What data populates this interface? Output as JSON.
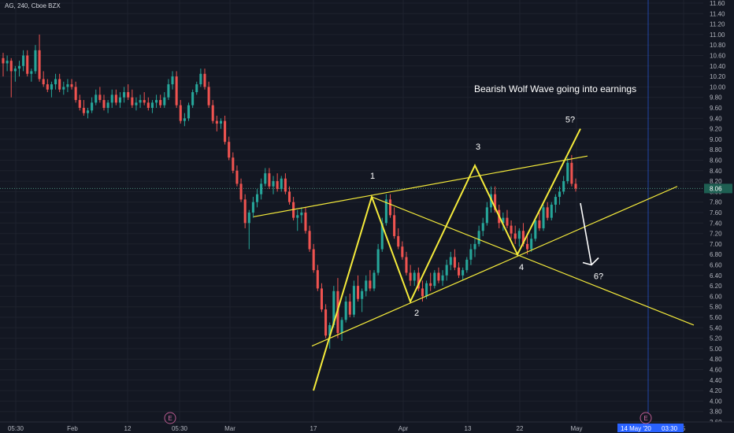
{
  "chart_data": {
    "type": "candlestick",
    "symbol_header": "AG, 240, Cboe BZX",
    "annotation": "Bearish Wolf Wave going into earnings",
    "last_price": "8.06",
    "y_ticks": [
      "3.60",
      "3.80",
      "4.00",
      "4.20",
      "4.40",
      "4.60",
      "4.80",
      "5.00",
      "5.20",
      "5.40",
      "5.60",
      "5.80",
      "6.00",
      "6.20",
      "6.40",
      "6.60",
      "6.80",
      "7.00",
      "7.20",
      "7.40",
      "7.60",
      "7.80",
      "8.00",
      "8.20",
      "8.40",
      "8.60",
      "8.80",
      "9.00",
      "9.20",
      "9.40",
      "9.60",
      "9.80",
      "10.00",
      "10.20",
      "10.40",
      "10.60",
      "10.80",
      "11.00",
      "11.20",
      "11.40",
      "11.60"
    ],
    "ylim": [
      3.6,
      11.6
    ],
    "x_ticks": [
      "05:30",
      "Feb",
      "12",
      "05:30",
      "Mar",
      "17",
      "Apr",
      "13",
      "22",
      "May",
      "5"
    ],
    "date_badge": "14 May '20",
    "time_badge": "03:30",
    "earnings_marker": "E",
    "wave_labels": [
      {
        "label": "1",
        "price": 7.9
      },
      {
        "label": "2",
        "price": 5.9
      },
      {
        "label": "3",
        "price": 8.5
      },
      {
        "label": "4",
        "price": 6.8
      },
      {
        "label": "5?",
        "price": 9.2
      },
      {
        "label": "6?",
        "price": 6.55
      }
    ],
    "candles": [
      [
        10.55,
        10.65,
        10.2,
        10.45
      ],
      [
        10.45,
        10.6,
        10.3,
        10.5
      ],
      [
        10.5,
        10.55,
        9.8,
        10.3
      ],
      [
        10.3,
        10.4,
        10.1,
        10.35
      ],
      [
        10.35,
        10.5,
        10.2,
        10.4
      ],
      [
        10.4,
        10.7,
        10.3,
        10.6
      ],
      [
        10.6,
        10.7,
        10.2,
        10.25
      ],
      [
        10.25,
        10.35,
        10.1,
        10.3
      ],
      [
        10.3,
        10.8,
        10.25,
        10.7
      ],
      [
        10.7,
        11.0,
        10.1,
        10.15
      ],
      [
        10.15,
        10.3,
        10.0,
        10.05
      ],
      [
        10.05,
        10.15,
        9.9,
        9.95
      ],
      [
        9.95,
        10.1,
        9.8,
        10.05
      ],
      [
        10.05,
        10.25,
        9.95,
        10.15
      ],
      [
        10.15,
        10.25,
        9.9,
        9.95
      ],
      [
        9.95,
        10.1,
        9.85,
        10.0
      ],
      [
        10.0,
        10.15,
        9.9,
        10.05
      ],
      [
        10.05,
        10.15,
        9.95,
        10.0
      ],
      [
        10.0,
        10.1,
        9.7,
        9.75
      ],
      [
        9.75,
        9.85,
        9.55,
        9.6
      ],
      [
        9.6,
        9.75,
        9.45,
        9.5
      ],
      [
        9.5,
        9.6,
        9.4,
        9.55
      ],
      [
        9.55,
        9.8,
        9.5,
        9.7
      ],
      [
        9.7,
        9.95,
        9.65,
        9.85
      ],
      [
        9.85,
        10.0,
        9.7,
        9.75
      ],
      [
        9.75,
        9.85,
        9.55,
        9.6
      ],
      [
        9.6,
        9.75,
        9.5,
        9.7
      ],
      [
        9.7,
        9.95,
        9.6,
        9.85
      ],
      [
        9.85,
        9.95,
        9.65,
        9.7
      ],
      [
        9.7,
        9.9,
        9.6,
        9.8
      ],
      [
        9.8,
        10.0,
        9.7,
        9.9
      ],
      [
        9.9,
        10.05,
        9.75,
        9.8
      ],
      [
        9.8,
        9.95,
        9.6,
        9.65
      ],
      [
        9.65,
        9.8,
        9.55,
        9.7
      ],
      [
        9.7,
        9.85,
        9.6,
        9.75
      ],
      [
        9.75,
        9.9,
        9.65,
        9.7
      ],
      [
        9.7,
        9.8,
        9.55,
        9.6
      ],
      [
        9.6,
        9.75,
        9.5,
        9.7
      ],
      [
        9.7,
        9.85,
        9.6,
        9.75
      ],
      [
        9.75,
        9.85,
        9.6,
        9.65
      ],
      [
        9.65,
        9.9,
        9.6,
        9.8
      ],
      [
        9.8,
        10.15,
        9.75,
        10.05
      ],
      [
        10.05,
        10.3,
        9.95,
        10.2
      ],
      [
        10.2,
        10.3,
        9.6,
        9.65
      ],
      [
        9.65,
        9.75,
        9.3,
        9.35
      ],
      [
        9.35,
        9.5,
        9.25,
        9.4
      ],
      [
        9.4,
        9.7,
        9.35,
        9.65
      ],
      [
        9.65,
        9.95,
        9.6,
        9.9
      ],
      [
        9.9,
        10.1,
        9.85,
        10.05
      ],
      [
        10.05,
        10.35,
        10.0,
        10.25
      ],
      [
        10.25,
        10.35,
        9.95,
        10.0
      ],
      [
        10.0,
        10.1,
        9.6,
        9.65
      ],
      [
        9.65,
        9.75,
        9.3,
        9.35
      ],
      [
        9.35,
        9.45,
        9.15,
        9.3
      ],
      [
        9.3,
        9.4,
        9.2,
        9.35
      ],
      [
        9.35,
        9.45,
        8.9,
        8.95
      ],
      [
        8.95,
        9.05,
        8.6,
        8.65
      ],
      [
        8.65,
        8.75,
        8.35,
        8.4
      ],
      [
        8.4,
        8.5,
        8.1,
        8.15
      ],
      [
        8.15,
        8.25,
        7.8,
        7.85
      ],
      [
        7.85,
        7.95,
        7.3,
        7.4
      ],
      [
        7.4,
        7.65,
        6.9,
        7.6
      ],
      [
        7.6,
        7.9,
        7.5,
        7.8
      ],
      [
        7.8,
        8.05,
        7.7,
        7.95
      ],
      [
        7.95,
        8.25,
        7.85,
        8.15
      ],
      [
        8.15,
        8.45,
        8.1,
        8.35
      ],
      [
        8.35,
        8.45,
        8.05,
        8.1
      ],
      [
        8.1,
        8.3,
        7.95,
        8.2
      ],
      [
        8.2,
        8.35,
        8.0,
        8.05
      ],
      [
        8.05,
        8.3,
        8.0,
        8.25
      ],
      [
        8.25,
        8.35,
        7.95,
        8.0
      ],
      [
        8.0,
        8.1,
        7.75,
        7.8
      ],
      [
        7.8,
        7.9,
        7.45,
        7.5
      ],
      [
        7.5,
        7.65,
        7.25,
        7.55
      ],
      [
        7.55,
        7.7,
        7.4,
        7.6
      ],
      [
        7.6,
        7.7,
        7.2,
        7.25
      ],
      [
        7.25,
        7.35,
        6.85,
        6.9
      ],
      [
        6.9,
        7.0,
        6.45,
        6.5
      ],
      [
        6.5,
        6.6,
        6.1,
        6.15
      ],
      [
        6.15,
        6.25,
        5.7,
        5.75
      ],
      [
        5.75,
        5.85,
        5.2,
        5.25
      ],
      [
        5.25,
        5.5,
        5.0,
        5.45
      ],
      [
        5.45,
        6.2,
        5.4,
        6.1
      ],
      [
        6.1,
        6.35,
        5.2,
        5.3
      ],
      [
        5.3,
        5.6,
        5.15,
        5.55
      ],
      [
        5.55,
        6.0,
        5.5,
        5.9
      ],
      [
        5.9,
        6.05,
        5.6,
        5.65
      ],
      [
        5.65,
        6.3,
        5.6,
        6.2
      ],
      [
        6.2,
        6.4,
        5.9,
        5.95
      ],
      [
        5.95,
        6.15,
        5.7,
        6.1
      ],
      [
        6.1,
        6.4,
        6.0,
        6.3
      ],
      [
        6.3,
        6.5,
        6.1,
        6.15
      ],
      [
        6.15,
        6.5,
        6.1,
        6.45
      ],
      [
        6.45,
        7.0,
        6.4,
        6.9
      ],
      [
        6.9,
        7.5,
        6.85,
        7.4
      ],
      [
        7.4,
        7.95,
        7.35,
        7.85
      ],
      [
        7.85,
        7.95,
        7.5,
        7.55
      ],
      [
        7.55,
        7.7,
        7.1,
        7.15
      ],
      [
        7.15,
        7.3,
        6.9,
        6.95
      ],
      [
        6.95,
        7.05,
        6.7,
        6.75
      ],
      [
        6.75,
        6.85,
        6.4,
        6.45
      ],
      [
        6.45,
        6.6,
        6.2,
        6.3
      ],
      [
        6.3,
        6.5,
        6.2,
        6.45
      ],
      [
        6.45,
        6.55,
        6.1,
        6.15
      ],
      [
        6.15,
        6.3,
        5.9,
        6.0
      ],
      [
        6.0,
        6.3,
        5.95,
        6.25
      ],
      [
        6.25,
        6.45,
        6.1,
        6.2
      ],
      [
        6.2,
        6.5,
        6.15,
        6.45
      ],
      [
        6.45,
        6.55,
        6.25,
        6.3
      ],
      [
        6.3,
        6.5,
        6.2,
        6.4
      ],
      [
        6.4,
        6.7,
        6.3,
        6.6
      ],
      [
        6.6,
        6.85,
        6.5,
        6.75
      ],
      [
        6.75,
        6.9,
        6.5,
        6.55
      ],
      [
        6.55,
        6.65,
        6.35,
        6.4
      ],
      [
        6.4,
        6.55,
        6.3,
        6.5
      ],
      [
        6.5,
        6.75,
        6.45,
        6.7
      ],
      [
        6.7,
        7.0,
        6.6,
        6.9
      ],
      [
        6.9,
        7.1,
        6.75,
        7.0
      ],
      [
        7.0,
        7.35,
        6.95,
        7.25
      ],
      [
        7.25,
        7.5,
        7.15,
        7.4
      ],
      [
        7.4,
        7.8,
        7.35,
        7.7
      ],
      [
        7.7,
        8.1,
        7.6,
        7.95
      ],
      [
        7.95,
        8.1,
        7.6,
        7.65
      ],
      [
        7.65,
        7.75,
        7.3,
        7.4
      ],
      [
        7.4,
        7.6,
        7.25,
        7.5
      ],
      [
        7.5,
        7.65,
        7.3,
        7.35
      ],
      [
        7.35,
        7.45,
        7.1,
        7.2
      ],
      [
        7.2,
        7.35,
        7.0,
        7.1
      ],
      [
        7.1,
        7.3,
        6.95,
        7.25
      ],
      [
        7.25,
        7.4,
        6.95,
        7.0
      ],
      [
        7.0,
        7.15,
        6.8,
        6.9
      ],
      [
        6.9,
        7.2,
        6.85,
        7.1
      ],
      [
        7.1,
        7.5,
        7.05,
        7.45
      ],
      [
        7.45,
        7.6,
        7.25,
        7.3
      ],
      [
        7.3,
        7.75,
        7.25,
        7.7
      ],
      [
        7.7,
        7.8,
        7.45,
        7.5
      ],
      [
        7.5,
        7.8,
        7.45,
        7.75
      ],
      [
        7.75,
        7.95,
        7.6,
        7.9
      ],
      [
        7.9,
        8.1,
        7.75,
        8.0
      ],
      [
        8.0,
        8.3,
        7.95,
        8.2
      ],
      [
        8.2,
        8.65,
        8.15,
        8.55
      ],
      [
        8.55,
        8.7,
        8.1,
        8.15
      ],
      [
        8.15,
        8.25,
        8.0,
        8.06
      ]
    ]
  }
}
